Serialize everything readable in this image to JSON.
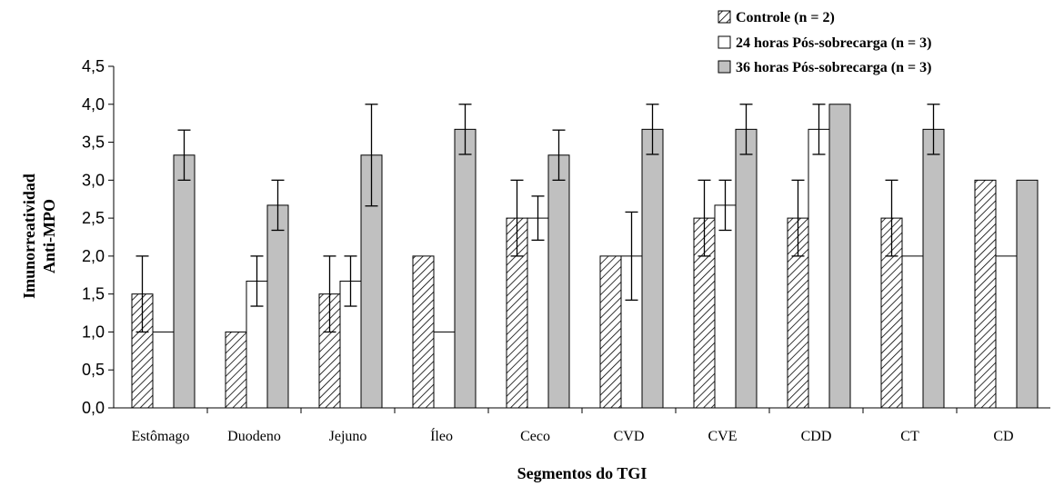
{
  "chart_data": {
    "type": "bar",
    "xlabel": "Segmentos do TGI",
    "ylabel_lines": [
      "Imunorreatividad",
      "Anti-MPO"
    ],
    "ylim": [
      0,
      4.5
    ],
    "yticks": [
      "0,0",
      "0,5",
      "1,0",
      "1,5",
      "2,0",
      "2,5",
      "3,0",
      "3,5",
      "4,0",
      "4,5"
    ],
    "grid": false,
    "legend_position": "top-right",
    "categories": [
      "Estômago",
      "Duodeno",
      "Jejuno",
      "Íleo",
      "Ceco",
      "CVD",
      "CVE",
      "CDD",
      "CT",
      "CD"
    ],
    "series": [
      {
        "name": "Controle (n = 2)",
        "fill": "hatch",
        "values": [
          1.5,
          1.0,
          1.5,
          2.0,
          2.5,
          2.0,
          2.5,
          2.5,
          2.5,
          3.0
        ],
        "errors": [
          0.5,
          0,
          0.5,
          0,
          0.5,
          0,
          0.5,
          0.5,
          0.5,
          0
        ]
      },
      {
        "name": "24 horas Pós-sobrecarga (n = 3)",
        "fill": "#ffffff",
        "values": [
          1.0,
          1.67,
          1.67,
          1.0,
          2.5,
          2.0,
          2.67,
          3.67,
          2.0,
          2.0
        ],
        "errors": [
          0,
          0.33,
          0.33,
          0,
          0.29,
          0.58,
          0.33,
          0.33,
          0,
          0
        ]
      },
      {
        "name": "36 horas Pós-sobrecarga (n = 3)",
        "fill": "#c0c0c0",
        "values": [
          3.33,
          2.67,
          3.33,
          3.67,
          3.33,
          3.67,
          3.67,
          4.0,
          3.67,
          3.0
        ],
        "errors": [
          0.33,
          0.33,
          0.67,
          0.33,
          0.33,
          0.33,
          0.33,
          0,
          0.33,
          0
        ]
      }
    ]
  }
}
